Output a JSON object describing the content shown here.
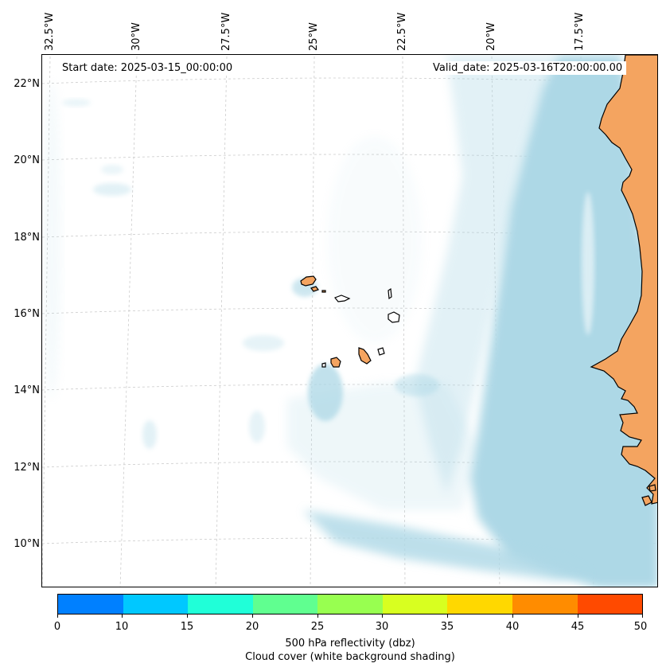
{
  "header": {
    "start_date": "Start date: 2025-03-15_00:00:00",
    "valid_date": "Valid_date: 2025-03-16T20:00:00.00"
  },
  "axes": {
    "longitude_labels": [
      "32.5°W",
      "30°W",
      "27.5°W",
      "25°W",
      "22.5°W",
      "20°W",
      "17.5°W"
    ],
    "latitude_labels": [
      "22°N",
      "20°N",
      "18°N",
      "16°N",
      "14°N",
      "12°N",
      "10°N"
    ]
  },
  "map": {
    "gridlines": true,
    "land_color": "#f4a460",
    "cloud_color": "#add8e6",
    "coastline_color": "#000000"
  },
  "colorbar": {
    "ticks": [
      "0",
      "10",
      "15",
      "20",
      "25",
      "30",
      "35",
      "40",
      "45",
      "50"
    ],
    "colors": [
      "#0080ff",
      "#00c8ff",
      "#20ffd8",
      "#60ff90",
      "#98ff50",
      "#d8ff20",
      "#ffd800",
      "#ff8c00",
      "#ff4a00"
    ],
    "label_line1": "500 hPa reflectivity (dbz)",
    "label_line2": "Cloud cover (white background shading)"
  }
}
